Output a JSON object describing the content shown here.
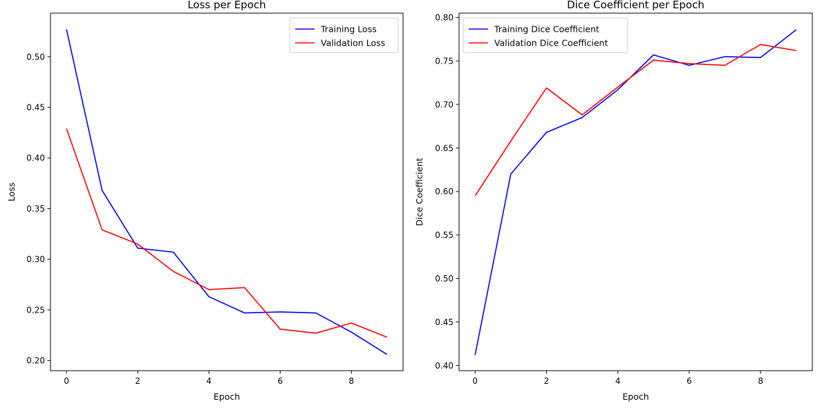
{
  "chart_data": [
    {
      "type": "line",
      "title": "Loss per Epoch",
      "xlabel": "Epoch",
      "ylabel": "Loss",
      "xlim": [
        -0.45,
        9.45
      ],
      "ylim": [
        0.19,
        0.543
      ],
      "xticks": [
        0,
        2,
        4,
        6,
        8
      ],
      "yticks": [
        0.2,
        0.25,
        0.3,
        0.35,
        0.4,
        0.45,
        0.5
      ],
      "ytick_format": 2,
      "grid": false,
      "legend": "top-right",
      "x": [
        0,
        1,
        2,
        3,
        4,
        5,
        6,
        7,
        8,
        9
      ],
      "series": [
        {
          "name": "Training Loss",
          "color": "#0000ff",
          "values": [
            0.527,
            0.368,
            0.311,
            0.307,
            0.263,
            0.247,
            0.248,
            0.247,
            0.228,
            0.206
          ]
        },
        {
          "name": "Validation Loss",
          "color": "#ff0000",
          "values": [
            0.429,
            0.329,
            0.315,
            0.288,
            0.27,
            0.272,
            0.231,
            0.227,
            0.237,
            0.223
          ]
        }
      ]
    },
    {
      "type": "line",
      "title": "Dice Coefficient per Epoch",
      "xlabel": "Epoch",
      "ylabel": "Dice Coefficient",
      "xlim": [
        -0.45,
        9.45
      ],
      "ylim": [
        0.394,
        0.805
      ],
      "xticks": [
        0,
        2,
        4,
        6,
        8
      ],
      "yticks": [
        0.4,
        0.45,
        0.5,
        0.55,
        0.6,
        0.65,
        0.7,
        0.75,
        0.8
      ],
      "ytick_format": 2,
      "grid": false,
      "legend": "top-left",
      "x": [
        0,
        1,
        2,
        3,
        4,
        5,
        6,
        7,
        8,
        9
      ],
      "series": [
        {
          "name": "Training Dice Coefficient",
          "color": "#0000ff",
          "values": [
            0.412,
            0.62,
            0.668,
            0.685,
            0.717,
            0.757,
            0.745,
            0.755,
            0.754,
            0.786
          ]
        },
        {
          "name": "Validation Dice Coefficient",
          "color": "#ff0000",
          "values": [
            0.595,
            0.658,
            0.719,
            0.688,
            0.72,
            0.751,
            0.747,
            0.745,
            0.769,
            0.762
          ]
        }
      ]
    }
  ]
}
